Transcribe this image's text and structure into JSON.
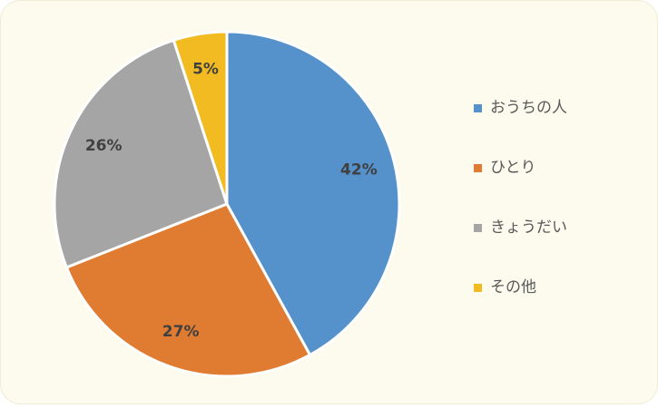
{
  "chart_data": {
    "type": "pie",
    "categories": [
      "おうちの人",
      "ひとり",
      "きょうだい",
      "その他"
    ],
    "values": [
      42,
      27,
      26,
      5
    ],
    "value_labels": [
      "42%",
      "27%",
      "26%",
      "5%"
    ],
    "colors": [
      "#5592cb",
      "#e07b32",
      "#a5a5a5",
      "#f2bb22"
    ],
    "legend": "right"
  }
}
